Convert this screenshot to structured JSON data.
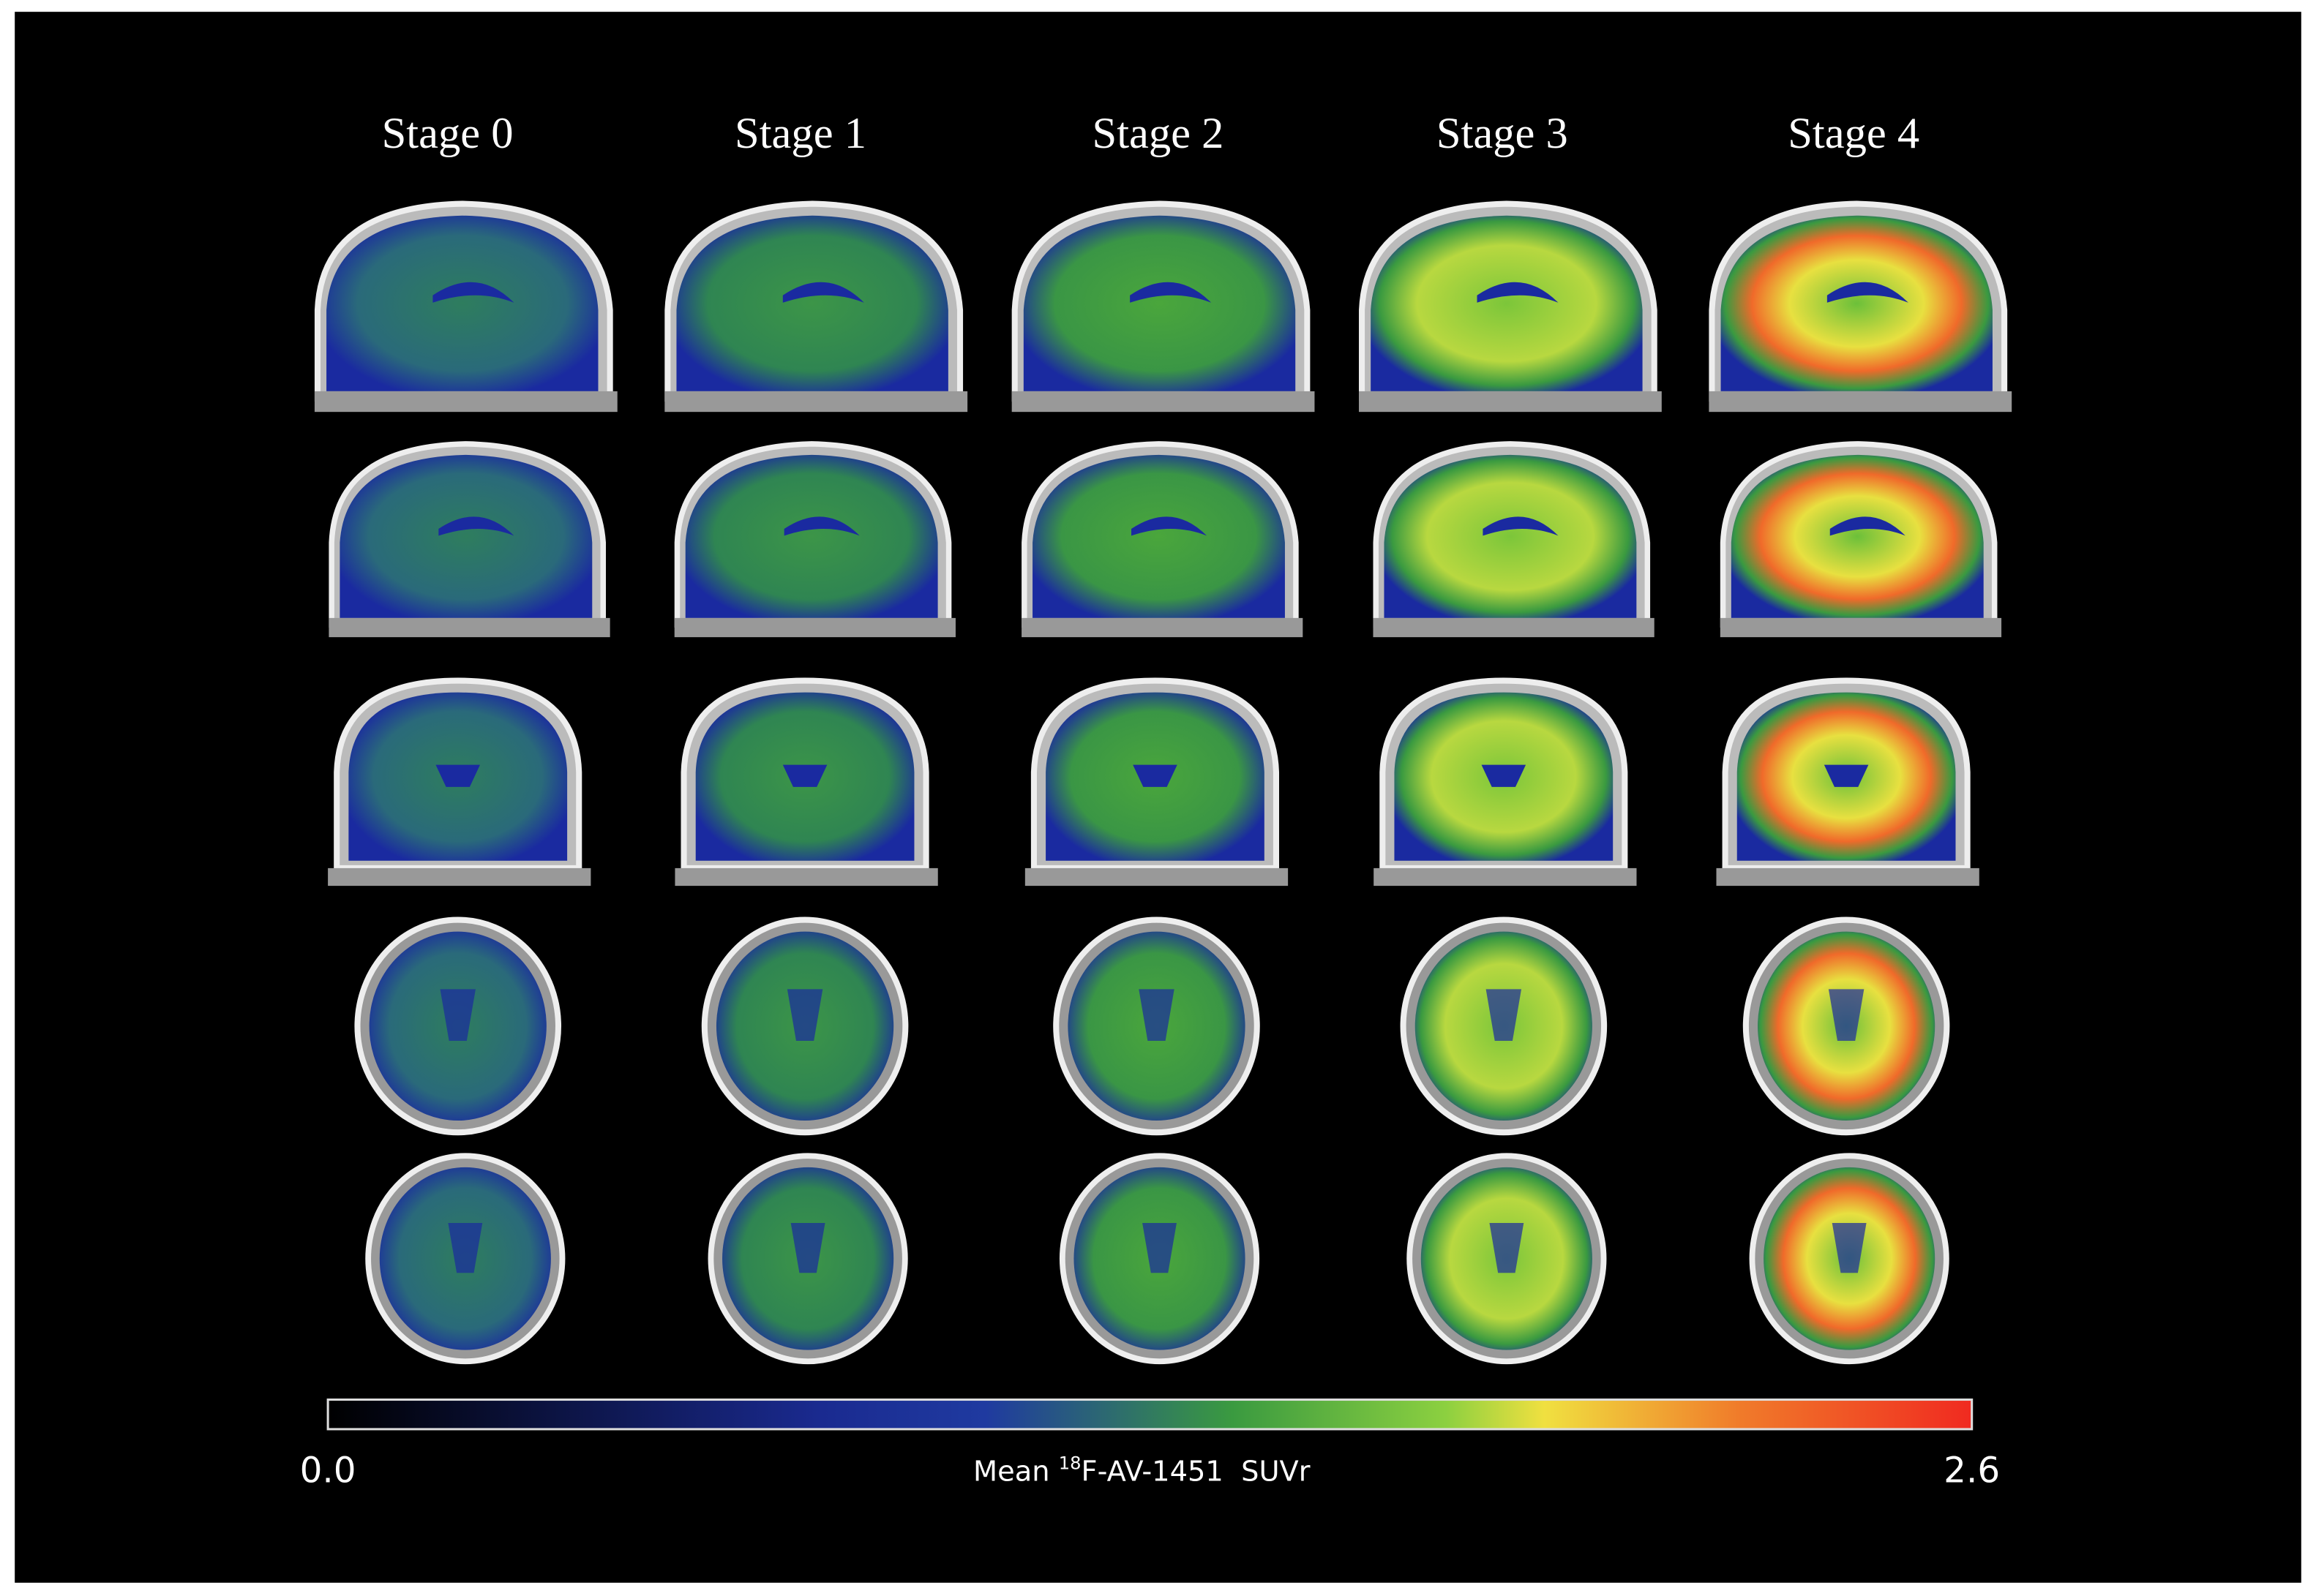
{
  "columns": [
    "Stage 0",
    "Stage 1",
    "Stage 2",
    "Stage 3",
    "Stage 4"
  ],
  "colorbar": {
    "min_label": "0.0",
    "max_label": "2.6",
    "title": {
      "before": "Mean ",
      "superscript": "18",
      "after": "F-AV-1451  SUVr"
    }
  }
}
